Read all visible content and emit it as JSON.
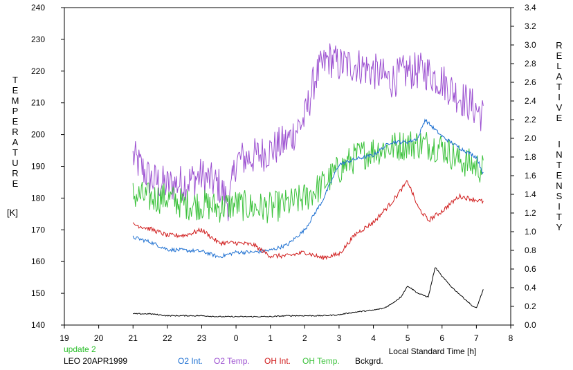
{
  "chart_data": {
    "type": "line",
    "title": "",
    "left_axis": {
      "label_letters": [
        "T",
        "E",
        "M",
        "P",
        "E",
        "R",
        "A",
        "T",
        "U",
        "R",
        "E"
      ],
      "unit": "[K]",
      "range": [
        140,
        240
      ],
      "ticks": [
        "140",
        "150",
        "160",
        "170",
        "180",
        "190",
        "200",
        "210",
        "220",
        "230",
        "240"
      ]
    },
    "right_axis": {
      "label_letters_1": [
        "R",
        "E",
        "L",
        "A",
        "T",
        "I",
        "V",
        "E"
      ],
      "label_letters_2": [
        "I",
        "N",
        "T",
        "E",
        "N",
        "S",
        "I",
        "T",
        "Y"
      ],
      "range": [
        0,
        3.4
      ],
      "ticks": [
        "0.0",
        "0.2",
        "0.4",
        "0.6",
        "0.8",
        "1.0",
        "1.2",
        "1.4",
        "1.6",
        "1.8",
        "2.0",
        "2.2",
        "2.4",
        "2.6",
        "2.8",
        "3.0",
        "3.2",
        "3.4"
      ]
    },
    "x_axis": {
      "label": "Local Standard Time [h]",
      "range": [
        19,
        32
      ],
      "ticks": [
        "19",
        "20",
        "21",
        "22",
        "23",
        "0",
        "1",
        "2",
        "3",
        "4",
        "5",
        "6",
        "7",
        "8"
      ]
    },
    "annotations": {
      "update": "update 2",
      "station": "LEO 20APR1999"
    },
    "colors": {
      "O2 Int.": "#1c6fd1",
      "O2 Temp.": "#9b4fd0",
      "OH Int.": "#d01c1c",
      "OH Temp.": "#3cc23c",
      "Bckgrd.": "#000000",
      "update": "#2bbf2b"
    },
    "series": [
      {
        "name": "O2 Temp.",
        "axis": "left",
        "x": [
          21.0,
          21.5,
          22.0,
          22.5,
          23.0,
          23.5,
          23.8,
          24.0,
          24.5,
          25.0,
          25.5,
          26.0,
          26.3,
          26.7,
          27.0,
          27.5,
          28.0,
          28.5,
          29.0,
          29.5,
          30.0,
          30.5,
          31.0,
          31.2
        ],
        "y": [
          193,
          186,
          184,
          185,
          187,
          184,
          178,
          192,
          193,
          195,
          198,
          205,
          218,
          224,
          222,
          222,
          220,
          217,
          220,
          220,
          217,
          212,
          208,
          206
        ],
        "noise": 6
      },
      {
        "name": "OH Temp.",
        "axis": "left",
        "x": [
          21.0,
          21.5,
          22.0,
          22.5,
          23.0,
          23.5,
          24.0,
          24.5,
          25.0,
          25.5,
          26.0,
          26.5,
          27.0,
          27.5,
          28.0,
          28.5,
          29.0,
          29.5,
          30.0,
          30.5,
          31.0,
          31.2
        ],
        "y": [
          181,
          180,
          180,
          178,
          178,
          177,
          178,
          177,
          177,
          178,
          180,
          184,
          189,
          193,
          195,
          196,
          197,
          197,
          196,
          192,
          190,
          189
        ],
        "noise": 5
      },
      {
        "name": "O2 Int.",
        "axis": "right",
        "x": [
          21.0,
          21.5,
          22.0,
          22.5,
          23.0,
          23.5,
          24.0,
          24.5,
          25.0,
          25.5,
          26.0,
          26.5,
          27.0,
          27.5,
          28.0,
          28.5,
          29.0,
          29.3,
          29.5,
          30.0,
          30.5,
          31.0,
          31.2
        ],
        "y": [
          0.94,
          0.89,
          0.81,
          0.8,
          0.79,
          0.73,
          0.78,
          0.78,
          0.8,
          0.86,
          1.02,
          1.32,
          1.72,
          1.78,
          1.82,
          1.96,
          1.96,
          2.0,
          2.2,
          2.02,
          1.9,
          1.8,
          1.62
        ],
        "noise": 0.02
      },
      {
        "name": "OH Int.",
        "axis": "right",
        "x": [
          21.0,
          21.5,
          22.0,
          22.5,
          23.0,
          23.5,
          24.0,
          24.5,
          25.0,
          25.5,
          26.0,
          26.5,
          27.0,
          27.5,
          28.0,
          28.5,
          29.0,
          29.3,
          29.6,
          30.0,
          30.5,
          31.0,
          31.2
        ],
        "y": [
          1.08,
          1.03,
          0.96,
          0.96,
          1.02,
          0.88,
          0.88,
          0.86,
          0.74,
          0.74,
          0.78,
          0.72,
          0.76,
          0.98,
          1.1,
          1.3,
          1.54,
          1.26,
          1.12,
          1.22,
          1.38,
          1.34,
          1.32
        ],
        "noise": 0.025
      },
      {
        "name": "Bckgrd.",
        "axis": "right",
        "x": [
          21.0,
          21.5,
          22.0,
          22.5,
          23.0,
          23.5,
          24.0,
          24.5,
          25.0,
          25.5,
          26.0,
          26.5,
          27.0,
          27.3,
          27.5,
          28.0,
          28.3,
          28.5,
          28.8,
          29.0,
          29.3,
          29.6,
          29.8,
          30.0,
          30.3,
          30.6,
          30.9,
          31.0,
          31.2
        ],
        "y": [
          0.12,
          0.12,
          0.1,
          0.1,
          0.1,
          0.09,
          0.09,
          0.09,
          0.09,
          0.1,
          0.1,
          0.1,
          0.11,
          0.13,
          0.14,
          0.16,
          0.18,
          0.22,
          0.3,
          0.42,
          0.34,
          0.3,
          0.62,
          0.52,
          0.4,
          0.3,
          0.2,
          0.18,
          0.38
        ],
        "noise": 0.006
      }
    ],
    "legend": [
      "O2 Int.",
      "O2 Temp.",
      "OH Int.",
      "OH Temp.",
      "Bckgrd."
    ]
  }
}
